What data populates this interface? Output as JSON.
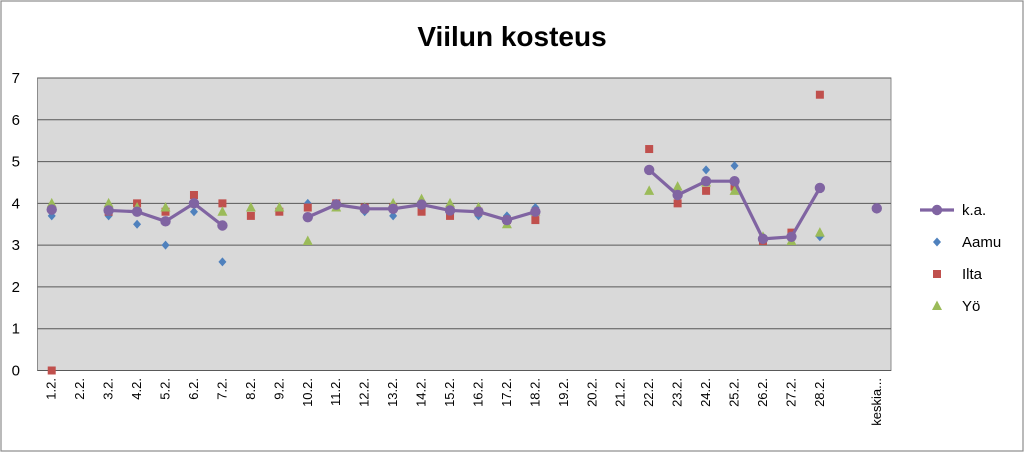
{
  "chart_data": {
    "type": "line",
    "title": "Viilun kosteus",
    "xlabel": "",
    "ylabel": "",
    "ylim": [
      0,
      7
    ],
    "yticks": [
      0,
      1,
      2,
      3,
      4,
      5,
      6,
      7
    ],
    "grid": true,
    "legend_position": "right",
    "categories": [
      "1.2.",
      "2.2.",
      "3.2.",
      "4.2.",
      "5.2.",
      "6.2.",
      "7.2.",
      "8.2.",
      "9.2.",
      "10.2.",
      "11.2.",
      "12.2.",
      "13.2.",
      "14.2.",
      "15.2.",
      "16.2.",
      "17.2.",
      "18.2.",
      "19.2.",
      "20.2.",
      "21.2.",
      "22.2.",
      "23.2.",
      "24.2.",
      "25.2.",
      "26.2.",
      "27.2.",
      "28.2.",
      "",
      "keskia..."
    ],
    "series": [
      {
        "name": "k.a.",
        "kind": "line-marker",
        "color": "#8064a2",
        "marker": "circle",
        "values": [
          3.85,
          null,
          3.83,
          3.8,
          3.57,
          4.0,
          3.47,
          null,
          null,
          3.67,
          3.97,
          3.87,
          3.87,
          3.97,
          3.83,
          3.8,
          3.6,
          3.8,
          null,
          null,
          null,
          4.8,
          4.2,
          4.53,
          4.53,
          3.15,
          3.2,
          4.37,
          null,
          3.88
        ]
      },
      {
        "name": "Aamu",
        "kind": "marker",
        "color": "#4f81bd",
        "marker": "diamond",
        "values": [
          3.7,
          null,
          3.7,
          3.5,
          3.0,
          3.8,
          2.6,
          null,
          null,
          4.0,
          4.0,
          3.8,
          3.7,
          4.0,
          3.8,
          3.7,
          3.7,
          3.9,
          null,
          null,
          null,
          4.8,
          4.2,
          4.8,
          4.9,
          3.2,
          3.2,
          3.2,
          null,
          null
        ]
      },
      {
        "name": "Ilta",
        "kind": "marker",
        "color": "#c0504d",
        "marker": "square",
        "values": [
          0.0,
          null,
          3.8,
          4.0,
          3.8,
          4.2,
          4.0,
          3.7,
          3.8,
          3.9,
          4.0,
          3.9,
          3.9,
          3.8,
          3.7,
          3.8,
          3.6,
          3.6,
          null,
          null,
          null,
          5.3,
          4.0,
          4.3,
          4.4,
          3.1,
          3.3,
          6.6,
          null,
          null
        ]
      },
      {
        "name": "Yö",
        "kind": "marker",
        "color": "#9bbb59",
        "marker": "triangle",
        "values": [
          4.0,
          null,
          4.0,
          3.9,
          3.9,
          4.0,
          3.8,
          3.9,
          3.9,
          3.1,
          3.9,
          3.9,
          4.0,
          4.1,
          4.0,
          3.9,
          3.5,
          3.8,
          null,
          null,
          null,
          4.3,
          4.4,
          4.5,
          4.3,
          3.2,
          3.1,
          3.3,
          null,
          null
        ]
      }
    ]
  }
}
